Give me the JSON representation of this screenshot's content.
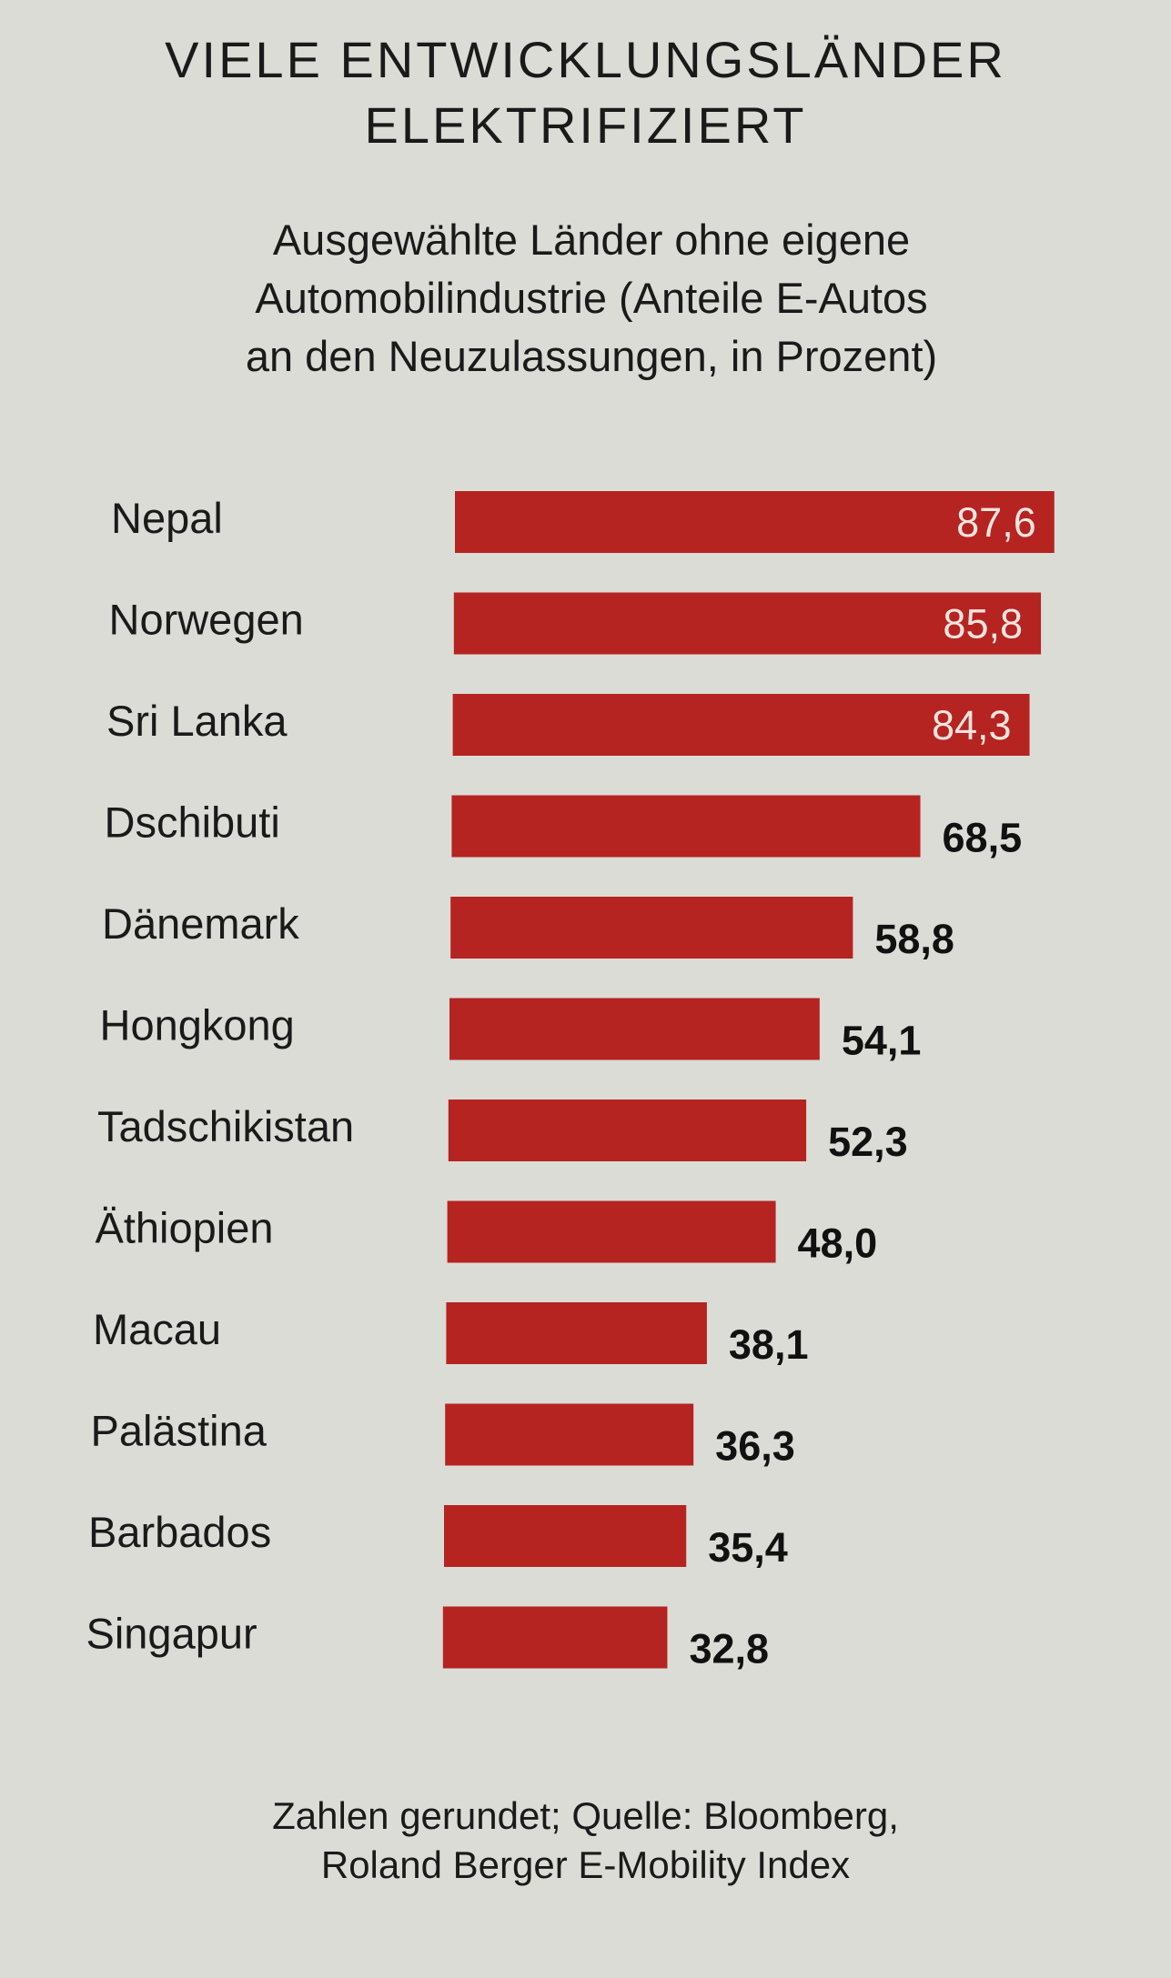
{
  "chart_data": {
    "type": "bar",
    "orientation": "horizontal",
    "title_lines": [
      "VIELE ENTWICKLUNGSLÄNDER",
      "ELEKTRIFIZIERT"
    ],
    "subtitle_lines": [
      "Ausgewählte Länder ohne eigene",
      "Automobilindustrie (Anteile E-Autos",
      "an den Neuzulassungen, in Prozent)"
    ],
    "categories": [
      "Nepal",
      "Norwegen",
      "Sri Lanka",
      "Dschibuti",
      "Dänemark",
      "Hongkong",
      "Tadschikistan",
      "Äthiopien",
      "Macau",
      "Palästina",
      "Barbados",
      "Singapur"
    ],
    "values": [
      87.6,
      85.8,
      84.3,
      68.5,
      58.8,
      54.1,
      52.3,
      48.0,
      38.1,
      36.3,
      35.4,
      32.8
    ],
    "value_labels": [
      "87,6",
      "85,8",
      "84,3",
      "68,5",
      "58,8",
      "54,1",
      "52,3",
      "48,0",
      "38,1",
      "36,3",
      "35,4",
      "32,8"
    ],
    "xlim": [
      0,
      90
    ],
    "grid": false,
    "legend": "none",
    "bar_color": "#b52420",
    "footer_lines": [
      "Zahlen gerundet; Quelle: Bloomberg,",
      "Roland Berger E-Mobility Index"
    ]
  }
}
